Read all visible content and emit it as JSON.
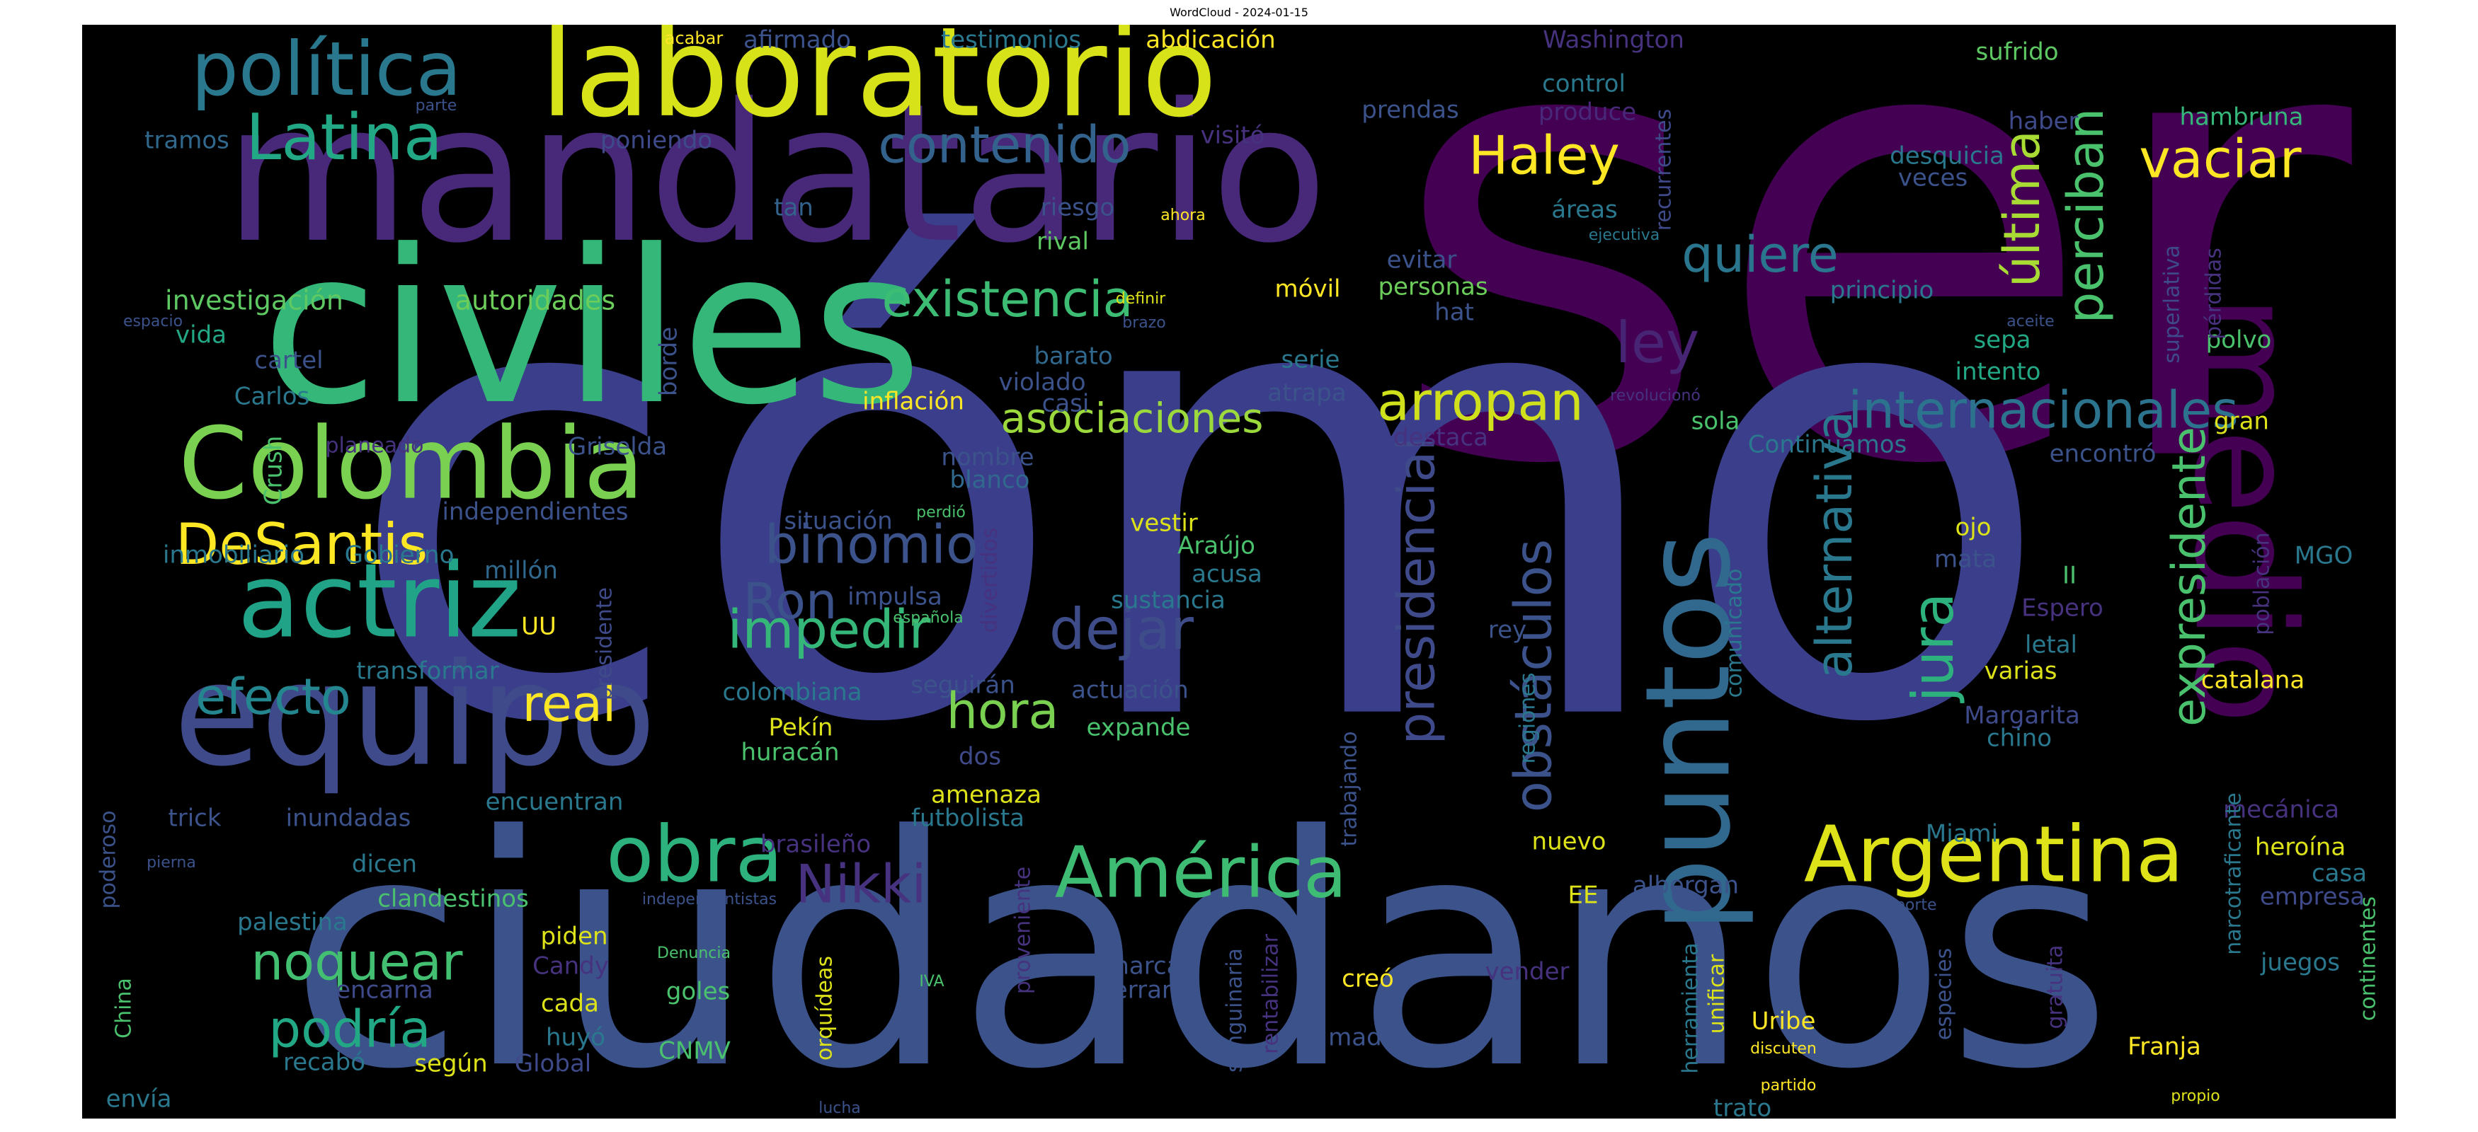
{
  "title": "WordCloud - 2024-01-15",
  "palette": {
    "purple_dark": "#440154",
    "purple": "#46327e",
    "indigo": "#365c8d",
    "blue": "#3b528b",
    "teal": "#277f8e",
    "green_teal": "#1fa187",
    "green": "#4ac16d",
    "lime": "#a0da39",
    "yellow": "#fde725"
  },
  "words": [
    {
      "text": "ser",
      "color": "#440154"
    },
    {
      "text": "cómo",
      "color": "#3b3f8b"
    },
    {
      "text": "ciudadanos",
      "color": "#3b528b"
    },
    {
      "text": "civiles",
      "color": "#35b779"
    },
    {
      "text": "mandatario",
      "color": "#482878"
    },
    {
      "text": "laboratorio",
      "color": "#d8e219"
    },
    {
      "text": "medio",
      "color": "#440154"
    },
    {
      "text": "equipo",
      "color": "#3e4a89"
    },
    {
      "text": "Colombia",
      "color": "#7ad151"
    },
    {
      "text": "actriz",
      "color": "#20a386"
    },
    {
      "text": "política",
      "color": "#2a788e"
    },
    {
      "text": "Latina",
      "color": "#22a884"
    },
    {
      "text": "puntos",
      "color": "#31688e"
    },
    {
      "text": "Argentina",
      "color": "#dde318"
    },
    {
      "text": "América",
      "color": "#3fbc73"
    },
    {
      "text": "obra",
      "color": "#2db27d"
    },
    {
      "text": "contenido",
      "color": "#33638d"
    },
    {
      "text": "existencia",
      "color": "#3dbc74"
    },
    {
      "text": "DeSantis",
      "color": "#fde725"
    },
    {
      "text": "asociaciones",
      "color": "#9bd93c"
    },
    {
      "text": "internacionales",
      "color": "#2c738e"
    },
    {
      "text": "arropan",
      "color": "#d0e11c"
    },
    {
      "text": "binomio",
      "color": "#3b528b"
    },
    {
      "text": "impedir",
      "color": "#35b779"
    },
    {
      "text": "dejar",
      "color": "#3e4c8a"
    },
    {
      "text": "Haley",
      "color": "#fde725"
    },
    {
      "text": "quiere",
      "color": "#2a768e"
    },
    {
      "text": "última",
      "color": "#a8db34"
    },
    {
      "text": "perciban",
      "color": "#4ac16d"
    },
    {
      "text": "vaciar",
      "color": "#fde725"
    },
    {
      "text": "ley",
      "color": "#482475"
    },
    {
      "text": "presidencial",
      "color": "#3e4a89"
    },
    {
      "text": "obstáculos",
      "color": "#3b528b"
    },
    {
      "text": "alternativa",
      "color": "#2a788e"
    },
    {
      "text": "jura",
      "color": "#2db27d"
    },
    {
      "text": "expresidente",
      "color": "#4ac16d"
    },
    {
      "text": "noquear",
      "color": "#43bf71"
    },
    {
      "text": "podría",
      "color": "#22a884"
    },
    {
      "text": "Nikki",
      "color": "#46327e"
    },
    {
      "text": "efecto",
      "color": "#24868e"
    },
    {
      "text": "real",
      "color": "#fde725"
    },
    {
      "text": "hora",
      "color": "#7ad151"
    },
    {
      "text": "Ron",
      "color": "#3b528b"
    },
    {
      "text": "investigación",
      "color": "#5ec962"
    },
    {
      "text": "autoridades",
      "color": "#6ccd5a"
    },
    {
      "text": "tramos",
      "color": "#31688e"
    },
    {
      "text": "afirmado",
      "color": "#3b528b"
    },
    {
      "text": "testimonios",
      "color": "#2a788e"
    },
    {
      "text": "abdicación",
      "color": "#fde725"
    },
    {
      "text": "acabar",
      "color": "#fde725"
    },
    {
      "text": "parte",
      "color": "#3b528b"
    },
    {
      "text": "poniendo",
      "color": "#3e4a89"
    },
    {
      "text": "visitó",
      "color": "#46327e"
    },
    {
      "text": "tan",
      "color": "#33638d"
    },
    {
      "text": "riesgo",
      "color": "#3b528b"
    },
    {
      "text": "ahora",
      "color": "#fde725"
    },
    {
      "text": "rival",
      "color": "#5ec962"
    },
    {
      "text": "Washington",
      "color": "#46327e"
    },
    {
      "text": "control",
      "color": "#2a788e"
    },
    {
      "text": "produce",
      "color": "#482878"
    },
    {
      "text": "prendas",
      "color": "#3b528b"
    },
    {
      "text": "sufrido",
      "color": "#5ec962"
    },
    {
      "text": "haber",
      "color": "#3e4a89"
    },
    {
      "text": "veces",
      "color": "#3b528b"
    },
    {
      "text": "desquicia",
      "color": "#2a788e"
    },
    {
      "text": "hambruna",
      "color": "#35b779"
    },
    {
      "text": "recurrentes",
      "color": "#3e4a89"
    },
    {
      "text": "áreas",
      "color": "#2a788e"
    },
    {
      "text": "ejecutiva",
      "color": "#2a788e"
    },
    {
      "text": "evitar",
      "color": "#3b528b"
    },
    {
      "text": "hat",
      "color": "#3b528b"
    },
    {
      "text": "personas",
      "color": "#6ccd5a"
    },
    {
      "text": "móvil",
      "color": "#fde725"
    },
    {
      "text": "definir",
      "color": "#dde318"
    },
    {
      "text": "brazo",
      "color": "#3b528b"
    },
    {
      "text": "espacio",
      "color": "#3b528b"
    },
    {
      "text": "vida",
      "color": "#22a884"
    },
    {
      "text": "cartel",
      "color": "#3b528b"
    },
    {
      "text": "Carlos",
      "color": "#2a788e"
    },
    {
      "text": "borde",
      "color": "#3b528b"
    },
    {
      "text": "barato",
      "color": "#31688e"
    },
    {
      "text": "violado",
      "color": "#3b528b"
    },
    {
      "text": "casi",
      "color": "#3b528b"
    },
    {
      "text": "serie",
      "color": "#2a788e"
    },
    {
      "text": "atrapa",
      "color": "#3b528b"
    },
    {
      "text": "inflación",
      "color": "#fde725"
    },
    {
      "text": "destaca",
      "color": "#46327e"
    },
    {
      "text": "principio",
      "color": "#2a788e"
    },
    {
      "text": "sepa",
      "color": "#22a884"
    },
    {
      "text": "intento",
      "color": "#22a884"
    },
    {
      "text": "polvo",
      "color": "#4ac16d"
    },
    {
      "text": "superlativa",
      "color": "#3e4a89"
    },
    {
      "text": "pérdidas",
      "color": "#46327e"
    },
    {
      "text": "aceite",
      "color": "#3b528b"
    },
    {
      "text": "revolucionó",
      "color": "#46327e"
    },
    {
      "text": "sola",
      "color": "#4ac16d"
    },
    {
      "text": "Continuamos",
      "color": "#2a788e"
    },
    {
      "text": "encontró",
      "color": "#3b528b"
    },
    {
      "text": "gran",
      "color": "#dde318"
    },
    {
      "text": "planeado",
      "color": "#46327e"
    },
    {
      "text": "Griselda",
      "color": "#3b528b"
    },
    {
      "text": "Crush",
      "color": "#4ac16d"
    },
    {
      "text": "nombre",
      "color": "#3b528b"
    },
    {
      "text": "blanco",
      "color": "#31688e"
    },
    {
      "text": "independientes",
      "color": "#3b528b"
    },
    {
      "text": "inmobiliario",
      "color": "#2a788e"
    },
    {
      "text": "Gobierno",
      "color": "#2a788e"
    },
    {
      "text": "millón",
      "color": "#31688e"
    },
    {
      "text": "situación",
      "color": "#3b528b"
    },
    {
      "text": "perdió",
      "color": "#4ac16d"
    },
    {
      "text": "divertidos",
      "color": "#46327e"
    },
    {
      "text": "vestir",
      "color": "#dde318"
    },
    {
      "text": "Araújo",
      "color": "#4ac16d"
    },
    {
      "text": "acusa",
      "color": "#2a788e"
    },
    {
      "text": "sustancia",
      "color": "#2a788e"
    },
    {
      "text": "impulsa",
      "color": "#3b528b"
    },
    {
      "text": "española",
      "color": "#4ac16d"
    },
    {
      "text": "presidente",
      "color": "#3e4a89"
    },
    {
      "text": "UU",
      "color": "#fde725"
    },
    {
      "text": "transformar",
      "color": "#2a788e"
    },
    {
      "text": "colombiana",
      "color": "#2a788e"
    },
    {
      "text": "seguirán",
      "color": "#3b528b"
    },
    {
      "text": "actuación",
      "color": "#3b528b"
    },
    {
      "text": "Pekín",
      "color": "#dde318"
    },
    {
      "text": "huracán",
      "color": "#4ac16d"
    },
    {
      "text": "dos",
      "color": "#3e4a89"
    },
    {
      "text": "expande",
      "color": "#4ac16d"
    },
    {
      "text": "amenaza",
      "color": "#dde318"
    },
    {
      "text": "futbolista",
      "color": "#2a788e"
    },
    {
      "text": "trick",
      "color": "#3b528b"
    },
    {
      "text": "inundadas",
      "color": "#3b528b"
    },
    {
      "text": "encuentran",
      "color": "#2a788e"
    },
    {
      "text": "brasileño",
      "color": "#46327e"
    },
    {
      "text": "rey",
      "color": "#3b528b"
    },
    {
      "text": "regiones",
      "color": "#2a788e"
    },
    {
      "text": "trabajando",
      "color": "#3b528b"
    },
    {
      "text": "comunicado",
      "color": "#2a788e"
    },
    {
      "text": "ojo",
      "color": "#dde318"
    },
    {
      "text": "mata",
      "color": "#3b528b"
    },
    {
      "text": "II",
      "color": "#4ac16d"
    },
    {
      "text": "MGO",
      "color": "#2a788e"
    },
    {
      "text": "Espero",
      "color": "#46327e"
    },
    {
      "text": "población",
      "color": "#46327e"
    },
    {
      "text": "letal",
      "color": "#2a788e"
    },
    {
      "text": "varias",
      "color": "#dde318"
    },
    {
      "text": "catalana",
      "color": "#fde725"
    },
    {
      "text": "Margarita",
      "color": "#3e4a89"
    },
    {
      "text": "chino",
      "color": "#2a788e"
    },
    {
      "text": "mecánica",
      "color": "#46327e"
    },
    {
      "text": "narcotraficante",
      "color": "#2a788e"
    },
    {
      "text": "heroína",
      "color": "#dde318"
    },
    {
      "text": "casa",
      "color": "#2a788e"
    },
    {
      "text": "empresa",
      "color": "#3e4a89"
    },
    {
      "text": "Miami",
      "color": "#2a788e"
    },
    {
      "text": "nuevo",
      "color": "#dde318"
    },
    {
      "text": "EE",
      "color": "#dde318"
    },
    {
      "text": "albergan",
      "color": "#3b528b"
    },
    {
      "text": "poderoso",
      "color": "#3b528b"
    },
    {
      "text": "pierna",
      "color": "#3b528b"
    },
    {
      "text": "dicen",
      "color": "#2a788e"
    },
    {
      "text": "clandestinos",
      "color": "#4ac16d"
    },
    {
      "text": "independentistas",
      "color": "#3b528b"
    },
    {
      "text": "proveniente",
      "color": "#46327e"
    },
    {
      "text": "palestina",
      "color": "#2a788e"
    },
    {
      "text": "piden",
      "color": "#dde318"
    },
    {
      "text": "Candy",
      "color": "#46327e"
    },
    {
      "text": "Denuncia",
      "color": "#4ac16d"
    },
    {
      "text": "IVA",
      "color": "#4ac16d"
    },
    {
      "text": "monarca",
      "color": "#3b528b"
    },
    {
      "text": "sanguinaria",
      "color": "#3b528b"
    },
    {
      "text": "rentabilizar",
      "color": "#46327e"
    },
    {
      "text": "vender",
      "color": "#46327e"
    },
    {
      "text": "herramienta",
      "color": "#2a788e"
    },
    {
      "text": "unificar",
      "color": "#dde318"
    },
    {
      "text": "especies",
      "color": "#3b528b"
    },
    {
      "text": "gratuita",
      "color": "#46327e"
    },
    {
      "text": "transporte",
      "color": "#3b528b"
    },
    {
      "text": "juegos",
      "color": "#2a788e"
    },
    {
      "text": "continentes",
      "color": "#4ac16d"
    },
    {
      "text": "China",
      "color": "#4ac16d"
    },
    {
      "text": "encarna",
      "color": "#3e4a89"
    },
    {
      "text": "goles",
      "color": "#4ac16d"
    },
    {
      "text": "cada",
      "color": "#dde318"
    },
    {
      "text": "cerrar",
      "color": "#3b528b"
    },
    {
      "text": "creó",
      "color": "#fde725"
    },
    {
      "text": "orquídeas",
      "color": "#dde318"
    },
    {
      "text": "huyó",
      "color": "#2a788e"
    },
    {
      "text": "madre",
      "color": "#3b528b"
    },
    {
      "text": "Uribe",
      "color": "#fde725"
    },
    {
      "text": "discuten",
      "color": "#fde725"
    },
    {
      "text": "Franja",
      "color": "#fde725"
    },
    {
      "text": "CNMV",
      "color": "#4ac16d"
    },
    {
      "text": "recabó",
      "color": "#2a788e"
    },
    {
      "text": "según",
      "color": "#dde318"
    },
    {
      "text": "Global",
      "color": "#3e4a89"
    },
    {
      "text": "envía",
      "color": "#2a788e"
    },
    {
      "text": "lucha",
      "color": "#3b528b"
    },
    {
      "text": "partido",
      "color": "#fde725"
    },
    {
      "text": "trato",
      "color": "#2a788e"
    },
    {
      "text": "propio",
      "color": "#dde318"
    }
  ]
}
